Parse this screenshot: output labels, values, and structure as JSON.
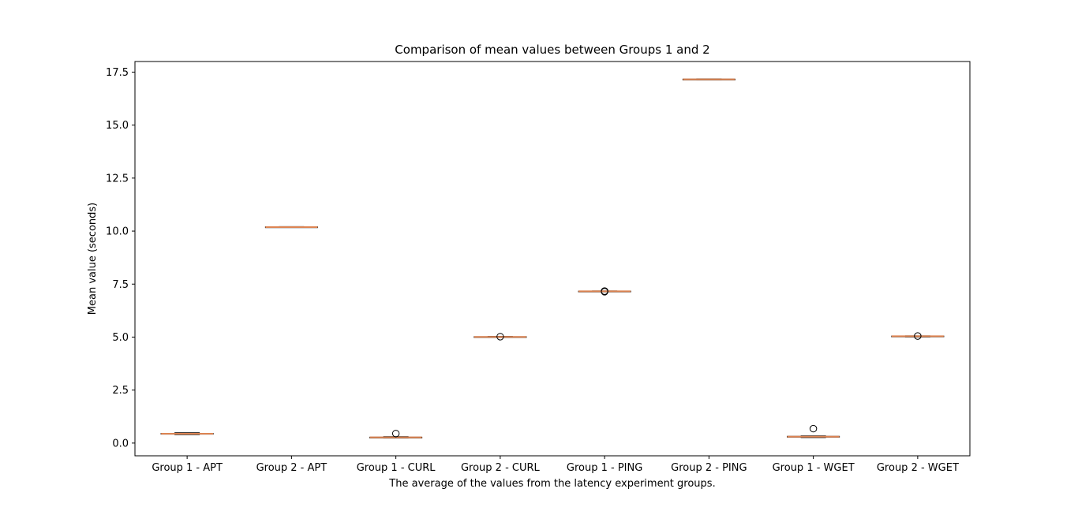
{
  "chart_data": {
    "type": "boxplot",
    "title": "Comparison of mean values between Groups 1 and 2",
    "xlabel": "The average of the values from the latency experiment groups.",
    "ylabel": "Mean value (seconds)",
    "ylim": [
      -0.6,
      18.0
    ],
    "yticks": [
      0.0,
      2.5,
      5.0,
      7.5,
      10.0,
      12.5,
      15.0,
      17.5
    ],
    "ytick_labels": [
      "0.0",
      "2.5",
      "5.0",
      "7.5",
      "10.0",
      "12.5",
      "15.0",
      "17.5"
    ],
    "grid": false,
    "legend": "none",
    "categories": [
      "Group 1 - APT",
      "Group 2 - APT",
      "Group 1 - CURL",
      "Group 2 - CURL",
      "Group 1 - PING",
      "Group 2 - PING",
      "Group 1 - WGET",
      "Group 2 - WGET"
    ],
    "boxes": [
      {
        "whisker_low": 0.4,
        "q1": 0.42,
        "median": 0.44,
        "q3": 0.46,
        "whisker_high": 0.49,
        "outliers": []
      },
      {
        "whisker_low": 10.17,
        "q1": 10.18,
        "median": 10.19,
        "q3": 10.2,
        "whisker_high": 10.21,
        "outliers": []
      },
      {
        "whisker_low": 0.24,
        "q1": 0.26,
        "median": 0.27,
        "q3": 0.28,
        "whisker_high": 0.3,
        "outliers": [
          0.45
        ]
      },
      {
        "whisker_low": 4.99,
        "q1": 5.0,
        "median": 5.01,
        "q3": 5.02,
        "whisker_high": 5.03,
        "outliers": [
          5.02
        ]
      },
      {
        "whisker_low": 7.14,
        "q1": 7.15,
        "median": 7.16,
        "q3": 7.17,
        "whisker_high": 7.18,
        "outliers": [
          7.14,
          7.17
        ]
      },
      {
        "whisker_low": 17.14,
        "q1": 17.15,
        "median": 17.16,
        "q3": 17.17,
        "whisker_high": 17.18,
        "outliers": []
      },
      {
        "whisker_low": 0.26,
        "q1": 0.28,
        "median": 0.3,
        "q3": 0.32,
        "whisker_high": 0.34,
        "outliers": [
          0.68
        ]
      },
      {
        "whisker_low": 5.01,
        "q1": 5.02,
        "median": 5.04,
        "q3": 5.05,
        "whisker_high": 5.06,
        "outliers": [
          5.05
        ]
      }
    ],
    "colors": {
      "box": "#000000",
      "median": "#dd8452",
      "outlier": "#000000",
      "axes": "#000000"
    }
  }
}
